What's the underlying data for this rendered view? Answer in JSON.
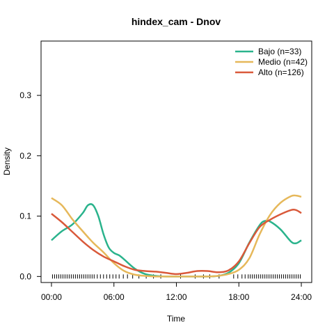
{
  "chart_data": {
    "type": "line",
    "title": "hindex_cam - Dnov",
    "xlabel": "Time",
    "ylabel": "Density",
    "xlim": [
      -1,
      25
    ],
    "ylim": [
      -0.01,
      0.39
    ],
    "x_ticks": [
      0,
      6,
      12,
      18,
      24
    ],
    "x_tick_labels": [
      "00:00",
      "06:00",
      "12:00",
      "18:00",
      "24:00"
    ],
    "y_ticks": [
      0.0,
      0.1,
      0.2,
      0.3
    ],
    "y_tick_labels": [
      "0.0",
      "0.1",
      "0.2",
      "0.3"
    ],
    "legend_position": "top-right",
    "grid": false,
    "series": [
      {
        "name": "Bajo (n=33)",
        "color": "#2ab38c",
        "x": [
          0,
          1,
          2,
          3,
          3.5,
          4,
          4.5,
          5,
          5.5,
          6,
          6.5,
          7,
          8,
          9,
          10,
          11,
          12,
          13,
          14,
          15,
          16,
          17,
          18,
          19,
          20,
          20.5,
          21,
          22,
          23,
          23.5,
          24
        ],
        "y": [
          0.06,
          0.075,
          0.086,
          0.105,
          0.118,
          0.118,
          0.1,
          0.07,
          0.048,
          0.039,
          0.035,
          0.028,
          0.013,
          0.004,
          0.001,
          0.0,
          0.0,
          0.0,
          0.0,
          0.0,
          0.001,
          0.006,
          0.022,
          0.056,
          0.085,
          0.092,
          0.091,
          0.078,
          0.058,
          0.055,
          0.06
        ]
      },
      {
        "name": "Medio (n=42)",
        "color": "#e6b85a",
        "x": [
          0,
          1,
          2,
          3,
          4,
          5,
          6,
          7,
          8,
          9,
          10,
          11,
          12,
          13,
          14,
          15,
          16,
          17,
          18,
          19,
          20,
          21,
          22,
          23,
          23.5,
          24
        ],
        "y": [
          0.13,
          0.118,
          0.095,
          0.075,
          0.056,
          0.04,
          0.022,
          0.009,
          0.003,
          0.001,
          0.0,
          0.0,
          0.0,
          0.0,
          0.0,
          0.0,
          0.001,
          0.004,
          0.011,
          0.03,
          0.07,
          0.102,
          0.122,
          0.133,
          0.134,
          0.132
        ]
      },
      {
        "name": "Alto (n=126)",
        "color": "#d9593a",
        "x": [
          0,
          1,
          2,
          3,
          4,
          5,
          6,
          7,
          8,
          9,
          10,
          11,
          12,
          13,
          14,
          15,
          16,
          17,
          18,
          19,
          20,
          21,
          22,
          23,
          23.5,
          24
        ],
        "y": [
          0.104,
          0.09,
          0.074,
          0.058,
          0.044,
          0.033,
          0.025,
          0.017,
          0.011,
          0.009,
          0.008,
          0.006,
          0.004,
          0.006,
          0.009,
          0.009,
          0.007,
          0.01,
          0.025,
          0.055,
          0.082,
          0.094,
          0.103,
          0.11,
          0.11,
          0.105
        ]
      }
    ],
    "rug_x": [
      0.1,
      0.3,
      0.5,
      0.7,
      0.9,
      1.1,
      1.3,
      1.5,
      1.7,
      1.9,
      2.1,
      2.3,
      2.5,
      2.7,
      2.9,
      3.1,
      3.3,
      3.5,
      3.7,
      3.9,
      4.1,
      4.4,
      4.7,
      5.0,
      5.3,
      5.6,
      5.9,
      6.2,
      6.5,
      6.9,
      7.3,
      7.8,
      8.4,
      9.1,
      9.8,
      10.5,
      12.4,
      13.8,
      14.6,
      15.2,
      16.1,
      17.5,
      17.9,
      18.3,
      18.6,
      18.9,
      19.1,
      19.3,
      19.5,
      19.7,
      19.9,
      20.1,
      20.3,
      20.5,
      20.7,
      20.9,
      21.1,
      21.3,
      21.5,
      21.7,
      21.9,
      22.1,
      22.3,
      22.5,
      22.7,
      22.9,
      23.1,
      23.3,
      23.5,
      23.7,
      23.9
    ]
  }
}
